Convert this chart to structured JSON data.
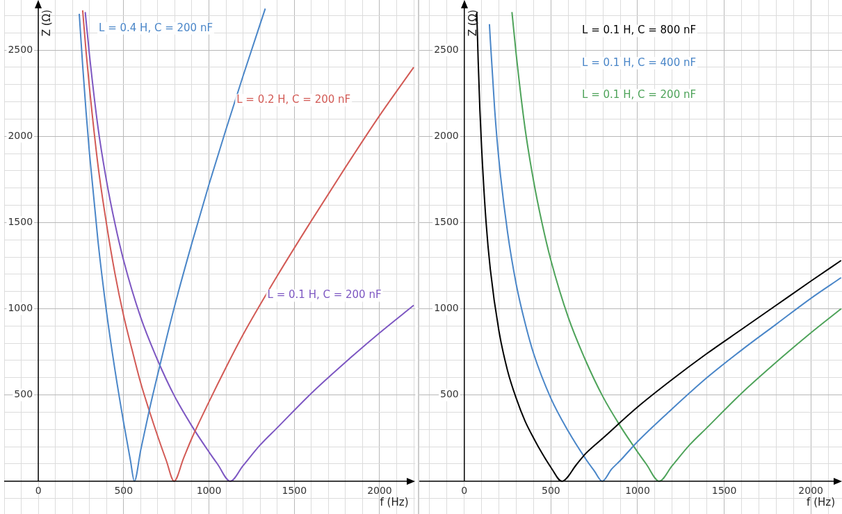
{
  "chart_data": [
    {
      "type": "line",
      "xlabel": "f (Hz)",
      "ylabel": "Z (Ω)",
      "grid": true,
      "xlim": [
        -200,
        2210
      ],
      "ylim": [
        -190,
        2790
      ],
      "xticks": [
        {
          "value": -200,
          "label": null
        },
        {
          "value": -100,
          "label": null
        },
        0,
        {
          "value": 100,
          "label": null
        },
        {
          "value": 200,
          "label": null
        },
        {
          "value": 300,
          "label": null
        },
        {
          "value": 400,
          "label": null
        },
        500,
        {
          "value": 600,
          "label": null
        },
        {
          "value": 700,
          "label": null
        },
        {
          "value": 800,
          "label": null
        },
        {
          "value": 900,
          "label": null
        },
        1000,
        {
          "value": 1100,
          "label": null
        },
        {
          "value": 1200,
          "label": null
        },
        {
          "value": 1300,
          "label": null
        },
        {
          "value": 1400,
          "label": null
        },
        1500,
        {
          "value": 1600,
          "label": null
        },
        {
          "value": 1700,
          "label": null
        },
        {
          "value": 1800,
          "label": null
        },
        {
          "value": 1900,
          "label": null
        },
        2000,
        {
          "value": 2100,
          "label": null
        },
        {
          "value": 2200,
          "label": null
        }
      ],
      "yticks": [
        {
          "value": -100,
          "label": null
        },
        {
          "value": 0,
          "label": null
        },
        {
          "value": 100,
          "label": null
        },
        {
          "value": 200,
          "label": null
        },
        {
          "value": 300,
          "label": null
        },
        {
          "value": 400,
          "label": null
        },
        500,
        {
          "value": 600,
          "label": null
        },
        {
          "value": 700,
          "label": null
        },
        {
          "value": 800,
          "label": null
        },
        {
          "value": 900,
          "label": null
        },
        1000,
        {
          "value": 1100,
          "label": null
        },
        {
          "value": 1200,
          "label": null
        },
        {
          "value": 1300,
          "label": null
        },
        {
          "value": 1400,
          "label": null
        },
        1500,
        {
          "value": 1600,
          "label": null
        },
        {
          "value": 1700,
          "label": null
        },
        {
          "value": 1800,
          "label": null
        },
        {
          "value": 1900,
          "label": null
        },
        2000,
        {
          "value": 2100,
          "label": null
        },
        {
          "value": 2200,
          "label": null
        },
        {
          "value": 2300,
          "label": null
        },
        {
          "value": 2400,
          "label": null
        },
        2500,
        {
          "value": 2600,
          "label": null
        },
        {
          "value": 2700,
          "label": null
        }
      ],
      "series": [
        {
          "name": "L = 0.4 H, C = 200 nF",
          "color": "#4a86c8",
          "x": [
            240,
            260,
            280,
            300,
            350,
            400,
            450,
            500,
            540,
            563,
            600,
            650,
            700,
            800,
            900,
            1000,
            1100,
            1200,
            1330
          ],
          "values": [
            2710,
            2410,
            2140,
            1900,
            1390,
            980,
            640,
            340,
            120,
            0,
            180,
            410,
            620,
            1020,
            1380,
            1720,
            2040,
            2350,
            2740
          ]
        },
        {
          "name": "L = 0.2 H, C = 200 nF",
          "color": "#d25a55",
          "x": [
            260,
            280,
            300,
            350,
            400,
            450,
            500,
            550,
            600,
            650,
            700,
            750,
            796,
            850,
            900,
            1000,
            1100,
            1200,
            1400,
            1600,
            1800,
            2000,
            2200
          ],
          "values": [
            2730,
            2490,
            2280,
            1830,
            1490,
            1200,
            960,
            760,
            570,
            410,
            260,
            120,
            0,
            130,
            250,
            460,
            660,
            850,
            1190,
            1510,
            1820,
            2120,
            2400
          ]
        },
        {
          "name": "L = 0.1 H, C = 200 nF",
          "color": "#7d57c2",
          "x": [
            275,
            300,
            350,
            400,
            450,
            500,
            600,
            700,
            800,
            900,
            1000,
            1050,
            1125,
            1200,
            1300,
            1400,
            1600,
            1800,
            2000,
            2200
          ],
          "values": [
            2720,
            2470,
            2050,
            1740,
            1490,
            1280,
            950,
            700,
            490,
            320,
            170,
            100,
            0,
            90,
            210,
            310,
            510,
            690,
            860,
            1020
          ]
        }
      ]
    },
    {
      "type": "line",
      "xlabel": "f (Hz)",
      "ylabel": "Z (Ω)",
      "grid": true,
      "xlim": [
        -260,
        2180
      ],
      "ylim": [
        -190,
        2790
      ],
      "xticks": [
        {
          "value": -200,
          "label": null
        },
        {
          "value": -100,
          "label": null
        },
        0,
        {
          "value": 100,
          "label": null
        },
        {
          "value": 200,
          "label": null
        },
        {
          "value": 300,
          "label": null
        },
        {
          "value": 400,
          "label": null
        },
        500,
        {
          "value": 600,
          "label": null
        },
        {
          "value": 700,
          "label": null
        },
        {
          "value": 800,
          "label": null
        },
        {
          "value": 900,
          "label": null
        },
        1000,
        {
          "value": 1100,
          "label": null
        },
        {
          "value": 1200,
          "label": null
        },
        {
          "value": 1300,
          "label": null
        },
        {
          "value": 1400,
          "label": null
        },
        1500,
        {
          "value": 1600,
          "label": null
        },
        {
          "value": 1700,
          "label": null
        },
        {
          "value": 1800,
          "label": null
        },
        {
          "value": 1900,
          "label": null
        },
        2000,
        {
          "value": 2100,
          "label": null
        }
      ],
      "yticks": [
        {
          "value": -100,
          "label": null
        },
        {
          "value": 0,
          "label": null
        },
        {
          "value": 100,
          "label": null
        },
        {
          "value": 200,
          "label": null
        },
        {
          "value": 300,
          "label": null
        },
        {
          "value": 400,
          "label": null
        },
        500,
        {
          "value": 600,
          "label": null
        },
        {
          "value": 700,
          "label": null
        },
        {
          "value": 800,
          "label": null
        },
        {
          "value": 900,
          "label": null
        },
        1000,
        {
          "value": 1100,
          "label": null
        },
        {
          "value": 1200,
          "label": null
        },
        {
          "value": 1300,
          "label": null
        },
        {
          "value": 1400,
          "label": null
        },
        1500,
        {
          "value": 1600,
          "label": null
        },
        {
          "value": 1700,
          "label": null
        },
        {
          "value": 1800,
          "label": null
        },
        {
          "value": 1900,
          "label": null
        },
        2000,
        {
          "value": 2100,
          "label": null
        },
        {
          "value": 2200,
          "label": null
        },
        {
          "value": 2300,
          "label": null
        },
        {
          "value": 2400,
          "label": null
        },
        2500,
        {
          "value": 2600,
          "label": null
        },
        {
          "value": 2700,
          "label": null
        }
      ],
      "series": [
        {
          "name": "L = 0.1 H, C = 800 nF",
          "color": "#000000",
          "x": [
            72,
            80,
            90,
            100,
            125,
            150,
            200,
            250,
            300,
            350,
            400,
            450,
            500,
            563,
            650,
            700,
            800,
            1000,
            1200,
            1400,
            1600,
            1800,
            2000,
            2175
          ],
          "values": [
            2720,
            2440,
            2150,
            1930,
            1510,
            1230,
            870,
            640,
            480,
            350,
            250,
            160,
            80,
            0,
            100,
            160,
            250,
            430,
            590,
            740,
            880,
            1020,
            1160,
            1280
          ]
        },
        {
          "name": "L = 0.1 H, C = 400 nF",
          "color": "#4a86c8",
          "x": [
            145,
            150,
            175,
            200,
            250,
            300,
            350,
            400,
            500,
            600,
            700,
            750,
            796,
            850,
            900,
            1000,
            1200,
            1400,
            1600,
            1800,
            2000,
            2175
          ],
          "values": [
            2650,
            2560,
            2160,
            1860,
            1440,
            1140,
            920,
            740,
            480,
            290,
            130,
            60,
            0,
            70,
            120,
            230,
            420,
            600,
            760,
            910,
            1060,
            1180
          ]
        },
        {
          "name": "L = 0.1 H, C = 200 nF",
          "color": "#4ea35a",
          "x": [
            275,
            300,
            350,
            400,
            450,
            500,
            600,
            700,
            800,
            900,
            1000,
            1050,
            1125,
            1200,
            1300,
            1400,
            1600,
            1800,
            2000,
            2175
          ],
          "values": [
            2720,
            2470,
            2050,
            1740,
            1490,
            1280,
            950,
            700,
            490,
            320,
            170,
            100,
            0,
            90,
            210,
            310,
            510,
            690,
            860,
            1000
          ]
        }
      ]
    }
  ]
}
